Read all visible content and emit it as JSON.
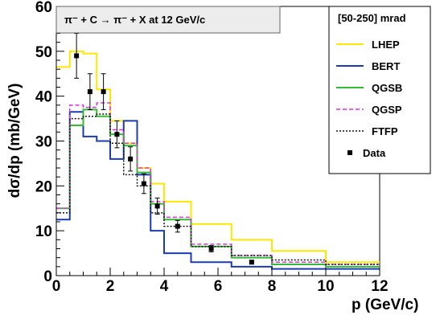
{
  "chart_data": {
    "type": "line",
    "title": "π⁻ + C → π⁻ + X at 12 GeV/c",
    "legend_title": "[50-250] mrad",
    "legend_placement": "top-right",
    "xlabel": "p (GeV/c)",
    "ylabel": "dσ/dp (mb/GeV)",
    "xlim": [
      0,
      12
    ],
    "ylim": [
      0,
      60
    ],
    "xticks": [
      "0",
      "2",
      "4",
      "6",
      "8",
      "10",
      "12"
    ],
    "yticks": [
      "0",
      "10",
      "20",
      "30",
      "40",
      "50",
      "60"
    ],
    "grid": false,
    "bin_edges": [
      0,
      0.5,
      1.0,
      1.5,
      2.0,
      2.5,
      3.0,
      3.5,
      4.0,
      5.0,
      6.5,
      8.0,
      10.0,
      12.0
    ],
    "series": [
      {
        "name": "LHEP",
        "color": "#ffe800",
        "style": "solid",
        "values": [
          46.5,
          50.0,
          49.5,
          41.5,
          34.5,
          29.5,
          24.0,
          20.5,
          16.5,
          11.5,
          8.0,
          5.5,
          3.0
        ]
      },
      {
        "name": "BERT",
        "color": "#1a3cb0",
        "style": "solid",
        "values": [
          12.5,
          36.5,
          31.0,
          30.0,
          26.0,
          34.5,
          22.5,
          10.0,
          5.0,
          3.0,
          2.0,
          1.5,
          1.5
        ]
      },
      {
        "name": "QGSB",
        "color": "#33bb33",
        "style": "solid",
        "values": [
          15.0,
          33.5,
          37.0,
          35.5,
          31.5,
          29.0,
          23.0,
          16.0,
          12.5,
          6.5,
          4.0,
          2.5,
          2.0
        ]
      },
      {
        "name": "QGSP",
        "color": "#dd33dd",
        "style": "dashed",
        "values": [
          15.0,
          38.0,
          37.5,
          38.5,
          32.5,
          29.5,
          24.0,
          16.5,
          13.0,
          7.0,
          4.5,
          3.0,
          2.5
        ]
      },
      {
        "name": "FTFP",
        "color": "#111111",
        "style": "dotted",
        "values": [
          14.0,
          35.0,
          35.5,
          36.0,
          29.5,
          22.5,
          20.0,
          14.0,
          11.0,
          6.5,
          4.5,
          3.5,
          2.5
        ]
      }
    ],
    "data_points": {
      "name": "Data",
      "x": [
        0.75,
        1.25,
        1.75,
        2.25,
        2.75,
        3.25,
        3.75,
        4.5,
        5.75,
        7.25
      ],
      "y": [
        49.0,
        41.0,
        41.0,
        31.5,
        26.0,
        20.5,
        15.5,
        11.0,
        6.0,
        3.0
      ],
      "err": [
        5.0,
        4.0,
        4.0,
        3.0,
        2.7,
        2.2,
        1.8,
        1.3,
        0.7,
        0.4
      ]
    }
  }
}
